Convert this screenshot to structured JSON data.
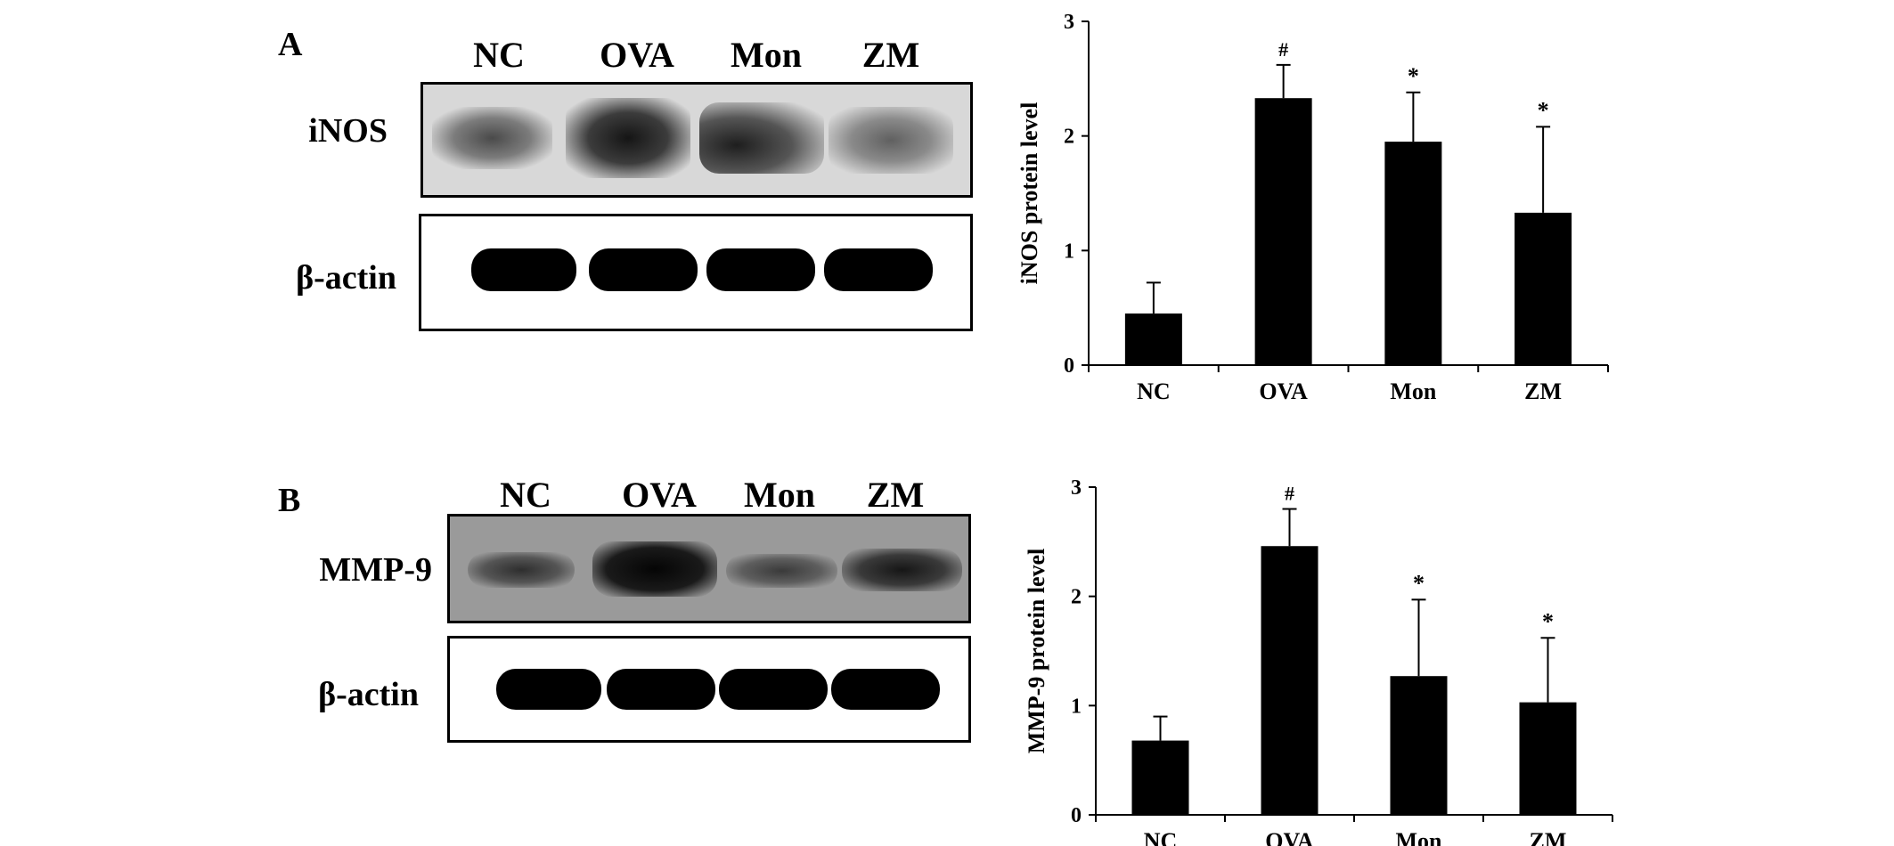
{
  "panels": [
    {
      "letter": "A",
      "lanes": [
        "NC",
        "OVA",
        "Mon",
        "ZM"
      ],
      "target_label": "iNOS",
      "loading_label": "β-actin"
    },
    {
      "letter": "B",
      "lanes": [
        "NC",
        "OVA",
        "Mon",
        "ZM"
      ],
      "target_label": "MMP-9",
      "loading_label": "β-actin"
    }
  ],
  "chart_data": [
    {
      "type": "bar",
      "categories": [
        "NC",
        "OVA",
        "Mon",
        "ZM"
      ],
      "values": [
        0.45,
        2.33,
        1.95,
        1.33
      ],
      "error": [
        0.27,
        0.29,
        0.43,
        0.75
      ],
      "annotations": [
        "",
        "#",
        "*",
        "*"
      ],
      "ylabel": "iNOS protein level",
      "ylim": [
        0,
        3
      ],
      "yticks": [
        0,
        1,
        2,
        3
      ],
      "bar_color": "#000000",
      "grid": false
    },
    {
      "type": "bar",
      "categories": [
        "NC",
        "OVA",
        "Mon",
        "ZM"
      ],
      "values": [
        0.68,
        2.46,
        1.27,
        1.03
      ],
      "error": [
        0.22,
        0.34,
        0.7,
        0.59
      ],
      "annotations": [
        "",
        "#",
        "*",
        "*"
      ],
      "ylabel": "MMP-9 protein level",
      "ylim": [
        0,
        3
      ],
      "yticks": [
        0,
        1,
        2,
        3
      ],
      "bar_color": "#000000",
      "grid": false
    }
  ]
}
